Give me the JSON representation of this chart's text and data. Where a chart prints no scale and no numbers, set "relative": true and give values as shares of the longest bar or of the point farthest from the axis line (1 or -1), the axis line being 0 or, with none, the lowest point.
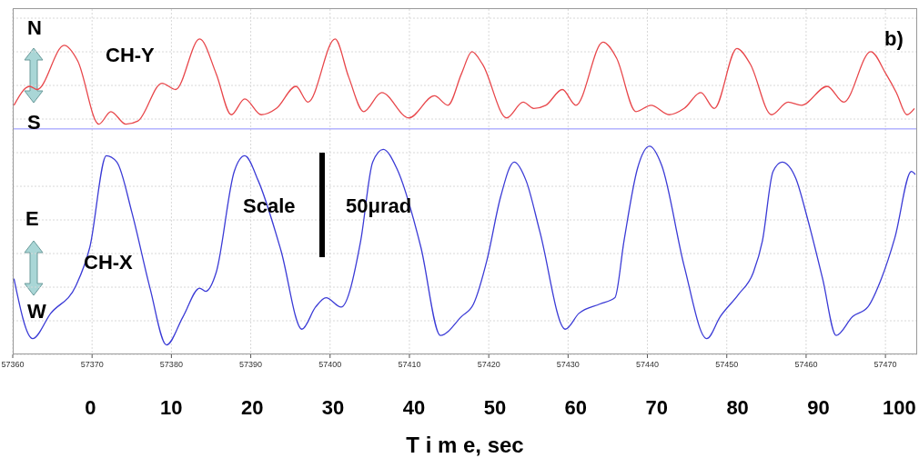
{
  "chart_data": {
    "type": "line",
    "relative": true,
    "xlabel": "T i m e, sec",
    "xlim": [
      -9.6,
      102.2
    ],
    "xticks": [
      0,
      10,
      20,
      30,
      40,
      50,
      60,
      70,
      80,
      90,
      100
    ],
    "x2lim": [
      57360,
      57474
    ],
    "x2ticks": [
      57360,
      57370,
      57380,
      57390,
      57400,
      57410,
      57420,
      57430,
      57440,
      57450,
      57460,
      57470
    ],
    "grid": true,
    "marker": "none",
    "line_style": "solid",
    "ref_lines": [
      {
        "axis": "y",
        "value": 0.715,
        "color": "#8c8cff"
      }
    ],
    "annotations": [
      "N",
      "S",
      "E",
      "W",
      "b)",
      "Scale",
      "50μrad"
    ],
    "series": [
      {
        "name": "CH-Y",
        "color": "#e8474b",
        "x": [
          -9.45,
          -7.51,
          -6.58,
          -3.24,
          -1.56,
          1.04,
          2.53,
          4.39,
          5.88,
          8.85,
          10.53,
          13.5,
          15.55,
          17.41,
          19.08,
          21.13,
          22.99,
          25.41,
          26.9,
          30.25,
          31.92,
          33.78,
          36.01,
          39.36,
          42.52,
          44.2,
          45.87,
          47.17,
          48.47,
          51.45,
          53.5,
          54.8,
          56.29,
          58.34,
          60.01,
          63.36,
          65.03,
          67.44,
          69.31,
          71.54,
          73.4,
          75.45,
          77.12,
          79.91,
          81.58,
          84.19,
          86.24,
          87.91,
          91.07,
          93.12,
          96.46,
          98.33,
          99.63,
          100.93,
          101.86
        ],
        "values": [
          0.79,
          0.85,
          0.84,
          0.98,
          0.93,
          0.73,
          0.77,
          0.73,
          0.74,
          0.86,
          0.84,
          1.0,
          0.89,
          0.76,
          0.81,
          0.76,
          0.78,
          0.85,
          0.8,
          1.0,
          0.88,
          0.77,
          0.83,
          0.75,
          0.82,
          0.79,
          0.89,
          0.96,
          0.92,
          0.75,
          0.8,
          0.78,
          0.79,
          0.84,
          0.79,
          0.99,
          0.94,
          0.77,
          0.79,
          0.76,
          0.78,
          0.83,
          0.78,
          0.97,
          0.92,
          0.76,
          0.8,
          0.79,
          0.85,
          0.8,
          0.96,
          0.89,
          0.83,
          0.76,
          0.78
        ]
      },
      {
        "name": "CH-X",
        "color": "#3b3bd6",
        "x": [
          -9.45,
          -7.14,
          -4.91,
          -1.75,
          -0.07,
          1.97,
          3.27,
          5.13,
          7.37,
          9.41,
          11.46,
          13.5,
          14.25,
          15.55,
          17.78,
          19.08,
          20.76,
          23.55,
          26.15,
          27.83,
          29.13,
          30.99,
          33.41,
          34.9,
          36.2,
          37.87,
          40.85,
          43.27,
          45.87,
          47.36,
          49.03,
          50.71,
          52.38,
          53.87,
          55.55,
          58.71,
          60.38,
          62.98,
          64.84,
          65.96,
          67.63,
          69.12,
          70.61,
          73.4,
          76.19,
          77.86,
          80.1,
          81.95,
          83.07,
          84.38,
          85.49,
          87.17,
          88.65,
          90.51,
          92.19,
          94.23,
          96.09,
          97.77,
          99.44,
          101.48,
          101.97
        ],
        "values": [
          0.24,
          0.05,
          0.13,
          0.22,
          0.34,
          0.63,
          0.61,
          0.45,
          0.21,
          0.03,
          0.12,
          0.21,
          0.2,
          0.26,
          0.58,
          0.63,
          0.55,
          0.33,
          0.08,
          0.15,
          0.18,
          0.15,
          0.36,
          0.61,
          0.65,
          0.59,
          0.34,
          0.06,
          0.12,
          0.16,
          0.3,
          0.5,
          0.61,
          0.55,
          0.39,
          0.08,
          0.13,
          0.16,
          0.18,
          0.36,
          0.59,
          0.66,
          0.6,
          0.28,
          0.05,
          0.12,
          0.19,
          0.26,
          0.36,
          0.58,
          0.61,
          0.56,
          0.43,
          0.24,
          0.06,
          0.12,
          0.15,
          0.24,
          0.37,
          0.58,
          0.57
        ]
      }
    ]
  }
}
